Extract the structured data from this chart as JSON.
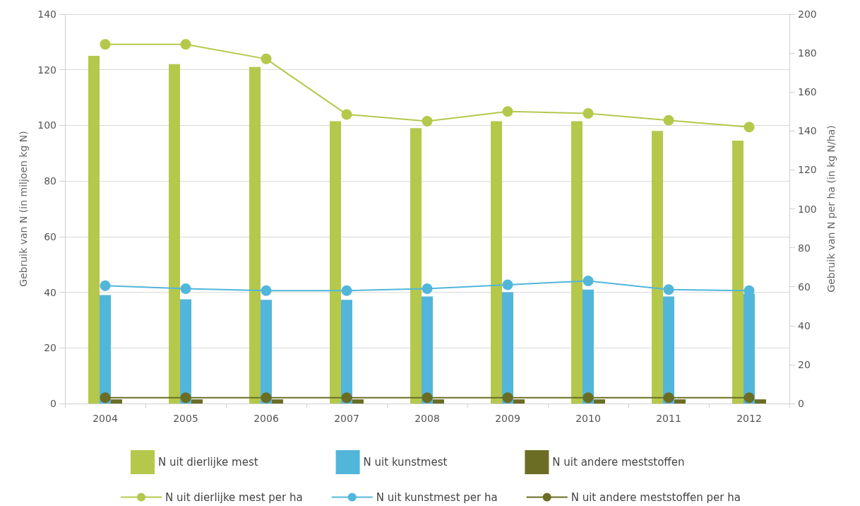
{
  "chart_data": {
    "type": "bar",
    "ylabel": "Gebruik van N (in miljoen kg N)",
    "y2label": "Gebruik van N per ha (in kg N/ha)",
    "categories": [
      "2004",
      "2005",
      "2006",
      "2007",
      "2008",
      "2009",
      "2010",
      "2011",
      "2012"
    ],
    "series": [
      {
        "name": "N uit dierlijke mest",
        "color": "#b5c84b",
        "values": [
          125,
          122,
          121,
          101.5,
          99,
          101.5,
          101.5,
          98,
          94.5
        ]
      },
      {
        "name": "N uit kunstmest",
        "color": "#52b6db",
        "values": [
          39,
          37.5,
          37.3,
          37.3,
          38.5,
          40,
          41,
          38.5,
          39.5
        ]
      },
      {
        "name": "N uit andere meststoffen",
        "color": "#6b6d25",
        "values": [
          1.5,
          1.5,
          1.5,
          1.5,
          1.5,
          1.5,
          1.5,
          1.5,
          1.5
        ]
      },
      {
        "name": "N uit dierlijke mest per ha",
        "type": "line",
        "axis": "y2",
        "color": "#b5c84b",
        "values": [
          184.5,
          184.5,
          177,
          148.5,
          145,
          150,
          149,
          145.5,
          142
        ]
      },
      {
        "name": "N uit kunstmest per ha",
        "type": "line",
        "axis": "y2",
        "color": "#52b6db",
        "values": [
          60.5,
          59,
          58,
          58,
          59,
          61,
          63,
          58.5,
          58
        ]
      },
      {
        "name": "N uit andere meststoffen per ha",
        "type": "line",
        "axis": "y2",
        "color": "#6b6d25",
        "values": [
          3,
          3,
          3,
          3,
          3,
          3,
          3,
          3,
          3
        ]
      }
    ],
    "ylim": [
      0,
      140
    ],
    "yticks": [
      0,
      20,
      40,
      60,
      80,
      100,
      120,
      140
    ],
    "y2lim": [
      0,
      200
    ],
    "y2ticks": [
      0,
      20,
      40,
      60,
      80,
      100,
      120,
      140,
      160,
      180,
      200
    ],
    "grid": "y",
    "legend": "bottom",
    "marker": "circle",
    "line_style": "solid"
  }
}
